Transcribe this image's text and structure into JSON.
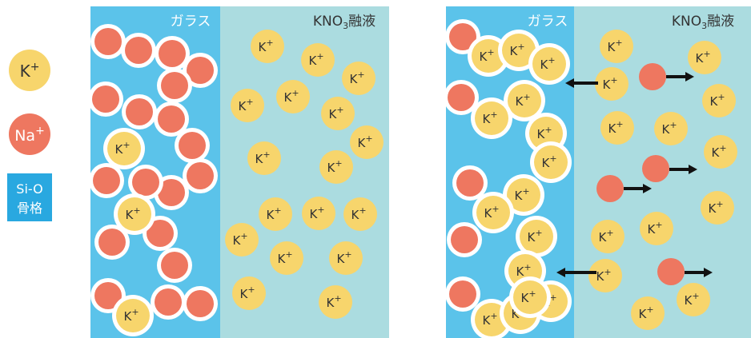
{
  "legend": {
    "k_label": "K",
    "na_label": "Na",
    "plus": "+",
    "frame_line1": "Si-O",
    "frame_line2": "骨格"
  },
  "panels": [
    {
      "glass_label": "ガラス",
      "melt_label_pre": "KNO",
      "melt_label_sub": "3",
      "melt_label_post": "融液"
    },
    {
      "glass_label": "ガラス",
      "melt_label_pre": "KNO",
      "melt_label_sub": "3",
      "melt_label_post": "融液"
    }
  ],
  "ion_text": {
    "k": "K",
    "plus": "+"
  },
  "colors": {
    "glass": "#5bc3ea",
    "melt": "#abdce0",
    "k_ion": "#f7d56c",
    "na_ion": "#ee7760",
    "ring": "#ffffff",
    "arrow": "#111111",
    "legend_box": "#29a8e0"
  }
}
